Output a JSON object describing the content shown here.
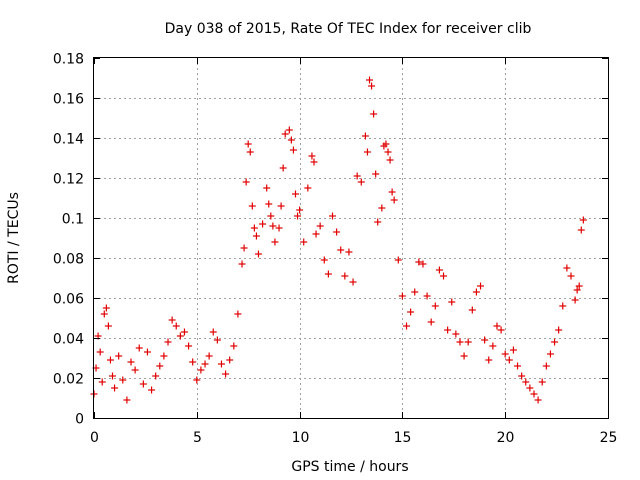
{
  "chart_data": {
    "type": "scatter",
    "title": "Day 038 of 2015, Rate Of TEC Index for receiver clib",
    "xlabel": "GPS time / hours",
    "ylabel": "ROTI / TECUs",
    "xlim": [
      0,
      25
    ],
    "ylim": [
      0,
      0.18
    ],
    "x_ticks": [
      0,
      5,
      10,
      15,
      20,
      25
    ],
    "y_ticks": [
      0,
      0.02,
      0.04,
      0.06,
      0.08,
      0.1,
      0.12,
      0.14,
      0.16,
      0.18
    ],
    "x_tick_labels": [
      "0",
      "5",
      "10",
      "15",
      "20",
      "25"
    ],
    "y_tick_labels": [
      "0",
      "0.02",
      "0.04",
      "0.06",
      "0.08",
      "0.1",
      "0.12",
      "0.14",
      "0.16",
      "0.18"
    ],
    "grid": true,
    "marker": "+",
    "color": "#e00000",
    "series": [
      {
        "points": [
          [
            0.0,
            0.012
          ],
          [
            0.1,
            0.025
          ],
          [
            0.2,
            0.041
          ],
          [
            0.3,
            0.033
          ],
          [
            0.4,
            0.018
          ],
          [
            0.5,
            0.052
          ],
          [
            0.6,
            0.055
          ],
          [
            0.7,
            0.046
          ],
          [
            0.8,
            0.029
          ],
          [
            0.9,
            0.021
          ],
          [
            1.0,
            0.015
          ],
          [
            1.2,
            0.031
          ],
          [
            1.4,
            0.019
          ],
          [
            1.6,
            0.009
          ],
          [
            1.8,
            0.028
          ],
          [
            2.0,
            0.024
          ],
          [
            2.2,
            0.035
          ],
          [
            2.4,
            0.017
          ],
          [
            2.6,
            0.033
          ],
          [
            2.8,
            0.014
          ],
          [
            3.0,
            0.021
          ],
          [
            3.2,
            0.026
          ],
          [
            3.4,
            0.031
          ],
          [
            3.6,
            0.038
          ],
          [
            3.8,
            0.049
          ],
          [
            4.0,
            0.046
          ],
          [
            4.2,
            0.041
          ],
          [
            4.4,
            0.043
          ],
          [
            4.6,
            0.036
          ],
          [
            4.8,
            0.028
          ],
          [
            5.0,
            0.019
          ],
          [
            5.2,
            0.024
          ],
          [
            5.4,
            0.027
          ],
          [
            5.6,
            0.031
          ],
          [
            5.8,
            0.043
          ],
          [
            6.0,
            0.039
          ],
          [
            6.2,
            0.027
          ],
          [
            6.4,
            0.022
          ],
          [
            6.6,
            0.029
          ],
          [
            6.8,
            0.036
          ],
          [
            7.0,
            0.052
          ],
          [
            7.2,
            0.077
          ],
          [
            7.3,
            0.085
          ],
          [
            7.4,
            0.118
          ],
          [
            7.5,
            0.137
          ],
          [
            7.6,
            0.133
          ],
          [
            7.7,
            0.106
          ],
          [
            7.8,
            0.095
          ],
          [
            7.9,
            0.091
          ],
          [
            8.0,
            0.082
          ],
          [
            8.2,
            0.097
          ],
          [
            8.4,
            0.115
          ],
          [
            8.5,
            0.107
          ],
          [
            8.6,
            0.101
          ],
          [
            8.7,
            0.096
          ],
          [
            8.8,
            0.088
          ],
          [
            9.0,
            0.095
          ],
          [
            9.1,
            0.106
          ],
          [
            9.2,
            0.125
          ],
          [
            9.3,
            0.142
          ],
          [
            9.5,
            0.144
          ],
          [
            9.6,
            0.139
          ],
          [
            9.7,
            0.134
          ],
          [
            9.8,
            0.112
          ],
          [
            9.9,
            0.101
          ],
          [
            10.0,
            0.104
          ],
          [
            10.2,
            0.088
          ],
          [
            10.4,
            0.115
          ],
          [
            10.6,
            0.131
          ],
          [
            10.7,
            0.128
          ],
          [
            10.8,
            0.092
          ],
          [
            11.0,
            0.096
          ],
          [
            11.2,
            0.079
          ],
          [
            11.4,
            0.072
          ],
          [
            11.6,
            0.101
          ],
          [
            11.8,
            0.093
          ],
          [
            12.0,
            0.084
          ],
          [
            12.2,
            0.071
          ],
          [
            12.4,
            0.083
          ],
          [
            12.6,
            0.068
          ],
          [
            12.8,
            0.121
          ],
          [
            13.0,
            0.118
          ],
          [
            13.2,
            0.141
          ],
          [
            13.3,
            0.133
          ],
          [
            13.4,
            0.169
          ],
          [
            13.5,
            0.166
          ],
          [
            13.6,
            0.152
          ],
          [
            13.7,
            0.122
          ],
          [
            13.8,
            0.098
          ],
          [
            14.0,
            0.105
          ],
          [
            14.1,
            0.136
          ],
          [
            14.2,
            0.137
          ],
          [
            14.3,
            0.133
          ],
          [
            14.4,
            0.129
          ],
          [
            14.5,
            0.113
          ],
          [
            14.6,
            0.109
          ],
          [
            14.8,
            0.079
          ],
          [
            15.0,
            0.061
          ],
          [
            15.2,
            0.046
          ],
          [
            15.4,
            0.053
          ],
          [
            15.6,
            0.063
          ],
          [
            15.8,
            0.078
          ],
          [
            16.0,
            0.077
          ],
          [
            16.2,
            0.061
          ],
          [
            16.4,
            0.048
          ],
          [
            16.6,
            0.056
          ],
          [
            16.8,
            0.074
          ],
          [
            17.0,
            0.071
          ],
          [
            17.2,
            0.044
          ],
          [
            17.4,
            0.058
          ],
          [
            17.6,
            0.042
          ],
          [
            17.8,
            0.038
          ],
          [
            18.0,
            0.031
          ],
          [
            18.2,
            0.038
          ],
          [
            18.4,
            0.054
          ],
          [
            18.6,
            0.063
          ],
          [
            18.8,
            0.066
          ],
          [
            19.0,
            0.039
          ],
          [
            19.2,
            0.029
          ],
          [
            19.4,
            0.036
          ],
          [
            19.6,
            0.046
          ],
          [
            19.8,
            0.044
          ],
          [
            20.0,
            0.032
          ],
          [
            20.2,
            0.029
          ],
          [
            20.4,
            0.034
          ],
          [
            20.6,
            0.026
          ],
          [
            20.8,
            0.021
          ],
          [
            21.0,
            0.018
          ],
          [
            21.2,
            0.015
          ],
          [
            21.4,
            0.012
          ],
          [
            21.6,
            0.009
          ],
          [
            21.8,
            0.018
          ],
          [
            22.0,
            0.026
          ],
          [
            22.2,
            0.032
          ],
          [
            22.4,
            0.038
          ],
          [
            22.6,
            0.044
          ],
          [
            22.8,
            0.056
          ],
          [
            23.0,
            0.075
          ],
          [
            23.2,
            0.071
          ],
          [
            23.4,
            0.059
          ],
          [
            23.5,
            0.064
          ],
          [
            23.6,
            0.066
          ],
          [
            23.7,
            0.094
          ],
          [
            23.8,
            0.099
          ]
        ]
      }
    ]
  }
}
